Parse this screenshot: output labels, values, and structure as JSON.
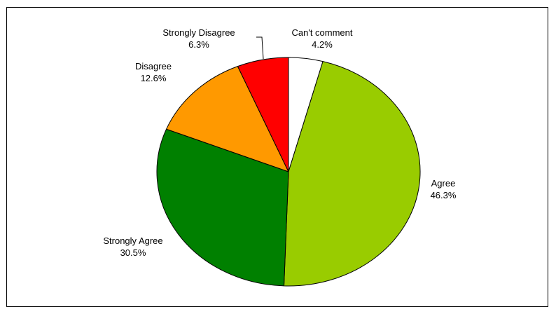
{
  "chart_data": {
    "type": "pie",
    "slices": [
      {
        "label": "Can't comment",
        "value": 4.2,
        "value_label": "4.2%",
        "color": "#ffffff"
      },
      {
        "label": "Agree",
        "value": 46.3,
        "value_label": "46.3%",
        "color": "#99cc00"
      },
      {
        "label": "Strongly Agree",
        "value": 30.5,
        "value_label": "30.5%",
        "color": "#008000"
      },
      {
        "label": "Disagree",
        "value": 12.6,
        "value_label": "12.6%",
        "color": "#ff9900"
      },
      {
        "label": "Strongly Disagree",
        "value": 6.3,
        "value_label": "6.3%",
        "color": "#ff0000"
      }
    ],
    "start_angle": "top",
    "direction": "clockwise",
    "legend": "none",
    "edge_color": "#000000"
  }
}
